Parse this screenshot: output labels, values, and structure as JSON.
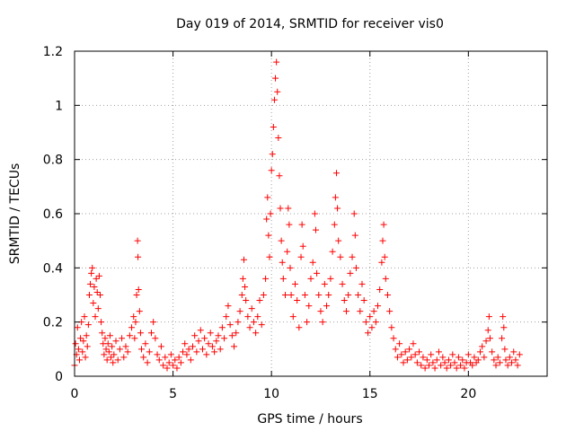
{
  "chart_data": {
    "type": "scatter",
    "title": "Day 019 of 2014, SRMTID for receiver vis0",
    "xlabel": "GPS time / hours",
    "ylabel": "SRMTID / TECUs",
    "xlim": [
      0,
      24
    ],
    "ylim": [
      0,
      1.2
    ],
    "xticks": [
      {
        "value": 0,
        "label": "0"
      },
      {
        "value": 5,
        "label": "5"
      },
      {
        "value": 10,
        "label": "10"
      },
      {
        "value": 15,
        "label": "15"
      },
      {
        "value": 20,
        "label": "20"
      }
    ],
    "yticks": [
      {
        "value": 0,
        "label": "0"
      },
      {
        "value": 0.2,
        "label": "0.2"
      },
      {
        "value": 0.4,
        "label": "0.4"
      },
      {
        "value": 0.6,
        "label": "0.6"
      },
      {
        "value": 0.8,
        "label": "0.8"
      },
      {
        "value": 1.0,
        "label": "1"
      },
      {
        "value": 1.2,
        "label": "1.2"
      }
    ],
    "grid": true,
    "marker": "+",
    "series": [
      {
        "name": "SRMTID vis0",
        "color": "#ff0000",
        "points": [
          [
            0.0,
            0.04
          ],
          [
            0.05,
            0.12
          ],
          [
            0.1,
            0.08
          ],
          [
            0.15,
            0.18
          ],
          [
            0.2,
            0.1
          ],
          [
            0.25,
            0.06
          ],
          [
            0.3,
            0.14
          ],
          [
            0.35,
            0.2
          ],
          [
            0.4,
            0.09
          ],
          [
            0.45,
            0.13
          ],
          [
            0.5,
            0.22
          ],
          [
            0.55,
            0.07
          ],
          [
            0.6,
            0.15
          ],
          [
            0.65,
            0.11
          ],
          [
            0.7,
            0.19
          ],
          [
            0.75,
            0.3
          ],
          [
            0.8,
            0.34
          ],
          [
            0.85,
            0.38
          ],
          [
            0.9,
            0.4
          ],
          [
            0.95,
            0.27
          ],
          [
            1.0,
            0.33
          ],
          [
            1.05,
            0.22
          ],
          [
            1.1,
            0.36
          ],
          [
            1.15,
            0.31
          ],
          [
            1.2,
            0.25
          ],
          [
            1.25,
            0.37
          ],
          [
            1.3,
            0.3
          ],
          [
            1.35,
            0.2
          ],
          [
            1.4,
            0.16
          ],
          [
            1.45,
            0.12
          ],
          [
            1.5,
            0.08
          ],
          [
            1.55,
            0.14
          ],
          [
            1.6,
            0.1
          ],
          [
            1.65,
            0.06
          ],
          [
            1.7,
            0.12
          ],
          [
            1.75,
            0.09
          ],
          [
            1.8,
            0.15
          ],
          [
            1.85,
            0.07
          ],
          [
            1.9,
            0.11
          ],
          [
            1.95,
            0.05
          ],
          [
            2.0,
            0.08
          ],
          [
            2.1,
            0.13
          ],
          [
            2.2,
            0.06
          ],
          [
            2.3,
            0.1
          ],
          [
            2.4,
            0.14
          ],
          [
            2.5,
            0.07
          ],
          [
            2.6,
            0.11
          ],
          [
            2.7,
            0.09
          ],
          [
            2.8,
            0.15
          ],
          [
            2.9,
            0.18
          ],
          [
            3.0,
            0.22
          ],
          [
            3.05,
            0.14
          ],
          [
            3.1,
            0.2
          ],
          [
            3.15,
            0.3
          ],
          [
            3.2,
            0.5
          ],
          [
            3.22,
            0.44
          ],
          [
            3.25,
            0.32
          ],
          [
            3.3,
            0.24
          ],
          [
            3.35,
            0.16
          ],
          [
            3.4,
            0.1
          ],
          [
            3.5,
            0.07
          ],
          [
            3.6,
            0.12
          ],
          [
            3.7,
            0.05
          ],
          [
            3.8,
            0.09
          ],
          [
            3.9,
            0.16
          ],
          [
            4.0,
            0.2
          ],
          [
            4.1,
            0.14
          ],
          [
            4.2,
            0.08
          ],
          [
            4.3,
            0.06
          ],
          [
            4.4,
            0.11
          ],
          [
            4.5,
            0.04
          ],
          [
            4.6,
            0.07
          ],
          [
            4.7,
            0.03
          ],
          [
            4.8,
            0.05
          ],
          [
            4.9,
            0.08
          ],
          [
            5.0,
            0.04
          ],
          [
            5.1,
            0.06
          ],
          [
            5.2,
            0.03
          ],
          [
            5.3,
            0.07
          ],
          [
            5.4,
            0.05
          ],
          [
            5.5,
            0.09
          ],
          [
            5.6,
            0.12
          ],
          [
            5.7,
            0.08
          ],
          [
            5.8,
            0.1
          ],
          [
            5.9,
            0.06
          ],
          [
            6.0,
            0.11
          ],
          [
            6.1,
            0.15
          ],
          [
            6.2,
            0.09
          ],
          [
            6.3,
            0.13
          ],
          [
            6.4,
            0.17
          ],
          [
            6.5,
            0.1
          ],
          [
            6.6,
            0.14
          ],
          [
            6.7,
            0.08
          ],
          [
            6.8,
            0.12
          ],
          [
            6.9,
            0.16
          ],
          [
            7.0,
            0.11
          ],
          [
            7.1,
            0.09
          ],
          [
            7.2,
            0.13
          ],
          [
            7.3,
            0.15
          ],
          [
            7.4,
            0.1
          ],
          [
            7.5,
            0.18
          ],
          [
            7.6,
            0.14
          ],
          [
            7.7,
            0.22
          ],
          [
            7.8,
            0.26
          ],
          [
            7.9,
            0.19
          ],
          [
            8.0,
            0.15
          ],
          [
            8.1,
            0.11
          ],
          [
            8.2,
            0.16
          ],
          [
            8.3,
            0.2
          ],
          [
            8.4,
            0.24
          ],
          [
            8.5,
            0.3
          ],
          [
            8.55,
            0.36
          ],
          [
            8.6,
            0.43
          ],
          [
            8.65,
            0.33
          ],
          [
            8.7,
            0.28
          ],
          [
            8.8,
            0.22
          ],
          [
            8.9,
            0.18
          ],
          [
            9.0,
            0.25
          ],
          [
            9.1,
            0.2
          ],
          [
            9.2,
            0.16
          ],
          [
            9.3,
            0.22
          ],
          [
            9.4,
            0.28
          ],
          [
            9.5,
            0.19
          ],
          [
            9.6,
            0.3
          ],
          [
            9.7,
            0.36
          ],
          [
            9.75,
            0.58
          ],
          [
            9.8,
            0.66
          ],
          [
            9.85,
            0.52
          ],
          [
            9.9,
            0.44
          ],
          [
            9.95,
            0.6
          ],
          [
            10.0,
            0.76
          ],
          [
            10.05,
            0.82
          ],
          [
            10.1,
            0.92
          ],
          [
            10.15,
            1.02
          ],
          [
            10.2,
            1.1
          ],
          [
            10.25,
            1.16
          ],
          [
            10.3,
            1.05
          ],
          [
            10.35,
            0.88
          ],
          [
            10.4,
            0.74
          ],
          [
            10.45,
            0.62
          ],
          [
            10.5,
            0.5
          ],
          [
            10.55,
            0.42
          ],
          [
            10.6,
            0.36
          ],
          [
            10.7,
            0.3
          ],
          [
            10.8,
            0.46
          ],
          [
            10.85,
            0.62
          ],
          [
            10.9,
            0.56
          ],
          [
            10.95,
            0.4
          ],
          [
            11.0,
            0.3
          ],
          [
            11.1,
            0.22
          ],
          [
            11.2,
            0.34
          ],
          [
            11.3,
            0.28
          ],
          [
            11.4,
            0.18
          ],
          [
            11.5,
            0.44
          ],
          [
            11.55,
            0.56
          ],
          [
            11.6,
            0.48
          ],
          [
            11.7,
            0.3
          ],
          [
            11.8,
            0.2
          ],
          [
            11.9,
            0.26
          ],
          [
            12.0,
            0.36
          ],
          [
            12.1,
            0.42
          ],
          [
            12.2,
            0.6
          ],
          [
            12.25,
            0.54
          ],
          [
            12.3,
            0.38
          ],
          [
            12.4,
            0.3
          ],
          [
            12.5,
            0.24
          ],
          [
            12.6,
            0.2
          ],
          [
            12.7,
            0.34
          ],
          [
            12.8,
            0.26
          ],
          [
            12.9,
            0.3
          ],
          [
            13.0,
            0.36
          ],
          [
            13.1,
            0.46
          ],
          [
            13.2,
            0.56
          ],
          [
            13.25,
            0.66
          ],
          [
            13.3,
            0.75
          ],
          [
            13.35,
            0.62
          ],
          [
            13.4,
            0.5
          ],
          [
            13.5,
            0.44
          ],
          [
            13.6,
            0.34
          ],
          [
            13.7,
            0.28
          ],
          [
            13.8,
            0.24
          ],
          [
            13.9,
            0.3
          ],
          [
            14.0,
            0.38
          ],
          [
            14.1,
            0.44
          ],
          [
            14.2,
            0.6
          ],
          [
            14.25,
            0.52
          ],
          [
            14.3,
            0.4
          ],
          [
            14.4,
            0.3
          ],
          [
            14.5,
            0.24
          ],
          [
            14.6,
            0.34
          ],
          [
            14.7,
            0.28
          ],
          [
            14.8,
            0.2
          ],
          [
            14.9,
            0.16
          ],
          [
            15.0,
            0.22
          ],
          [
            15.1,
            0.18
          ],
          [
            15.2,
            0.24
          ],
          [
            15.3,
            0.2
          ],
          [
            15.4,
            0.26
          ],
          [
            15.5,
            0.32
          ],
          [
            15.6,
            0.42
          ],
          [
            15.65,
            0.5
          ],
          [
            15.7,
            0.56
          ],
          [
            15.75,
            0.44
          ],
          [
            15.8,
            0.36
          ],
          [
            15.9,
            0.3
          ],
          [
            16.0,
            0.24
          ],
          [
            16.1,
            0.18
          ],
          [
            16.2,
            0.14
          ],
          [
            16.3,
            0.1
          ],
          [
            16.4,
            0.07
          ],
          [
            16.5,
            0.12
          ],
          [
            16.6,
            0.08
          ],
          [
            16.7,
            0.05
          ],
          [
            16.8,
            0.09
          ],
          [
            16.9,
            0.06
          ],
          [
            17.0,
            0.1
          ],
          [
            17.1,
            0.07
          ],
          [
            17.2,
            0.12
          ],
          [
            17.3,
            0.08
          ],
          [
            17.4,
            0.05
          ],
          [
            17.5,
            0.09
          ],
          [
            17.6,
            0.04
          ],
          [
            17.7,
            0.07
          ],
          [
            17.8,
            0.03
          ],
          [
            17.9,
            0.06
          ],
          [
            18.0,
            0.04
          ],
          [
            18.1,
            0.08
          ],
          [
            18.2,
            0.05
          ],
          [
            18.3,
            0.03
          ],
          [
            18.4,
            0.06
          ],
          [
            18.5,
            0.09
          ],
          [
            18.6,
            0.04
          ],
          [
            18.7,
            0.07
          ],
          [
            18.8,
            0.05
          ],
          [
            18.9,
            0.03
          ],
          [
            19.0,
            0.06
          ],
          [
            19.1,
            0.04
          ],
          [
            19.2,
            0.08
          ],
          [
            19.3,
            0.05
          ],
          [
            19.4,
            0.03
          ],
          [
            19.5,
            0.07
          ],
          [
            19.6,
            0.04
          ],
          [
            19.7,
            0.06
          ],
          [
            19.8,
            0.03
          ],
          [
            19.9,
            0.05
          ],
          [
            20.0,
            0.08
          ],
          [
            20.1,
            0.05
          ],
          [
            20.2,
            0.04
          ],
          [
            20.3,
            0.07
          ],
          [
            20.4,
            0.05
          ],
          [
            20.5,
            0.06
          ],
          [
            20.6,
            0.09
          ],
          [
            20.7,
            0.11
          ],
          [
            20.8,
            0.07
          ],
          [
            20.9,
            0.13
          ],
          [
            21.0,
            0.17
          ],
          [
            21.05,
            0.22
          ],
          [
            21.1,
            0.14
          ],
          [
            21.2,
            0.09
          ],
          [
            21.3,
            0.06
          ],
          [
            21.4,
            0.04
          ],
          [
            21.5,
            0.07
          ],
          [
            21.6,
            0.05
          ],
          [
            21.7,
            0.14
          ],
          [
            21.75,
            0.22
          ],
          [
            21.8,
            0.18
          ],
          [
            21.85,
            0.1
          ],
          [
            21.9,
            0.06
          ],
          [
            22.0,
            0.04
          ],
          [
            22.1,
            0.07
          ],
          [
            22.2,
            0.05
          ],
          [
            22.3,
            0.09
          ],
          [
            22.4,
            0.06
          ],
          [
            22.5,
            0.04
          ],
          [
            22.6,
            0.08
          ]
        ]
      }
    ]
  }
}
